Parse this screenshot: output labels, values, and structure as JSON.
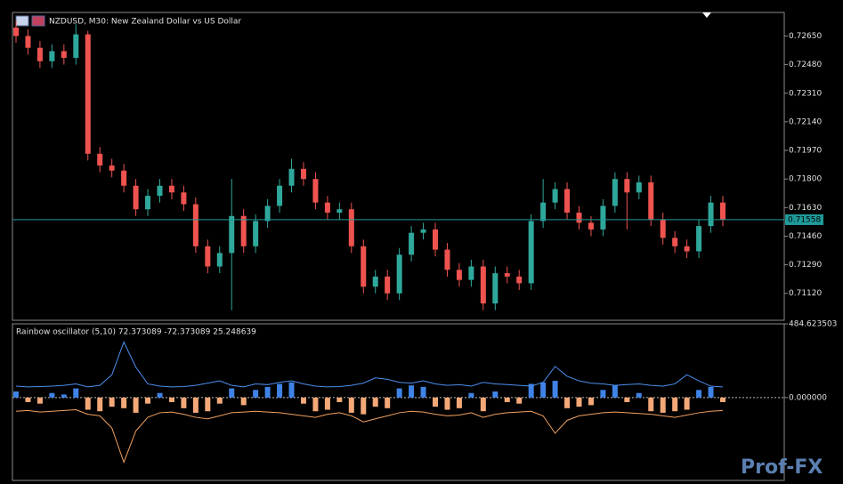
{
  "chart_data": [
    {
      "type": "candlestick",
      "title": "NZDUSD, M30:  New Zealand Dollar vs US Dollar",
      "open": [
        0.727,
        0.7265,
        0.7258,
        0.725,
        0.7256,
        0.7252,
        0.7266,
        0.7195,
        0.7188,
        0.7185,
        0.7176,
        0.7162,
        0.717,
        0.7176,
        0.7172,
        0.7165,
        0.714,
        0.7128,
        0.7136,
        0.7158,
        0.714,
        0.7155,
        0.7164,
        0.7176,
        0.7186,
        0.718,
        0.7166,
        0.716,
        0.7162,
        0.714,
        0.7116,
        0.7122,
        0.7112,
        0.7135,
        0.7148,
        0.715,
        0.7138,
        0.7126,
        0.712,
        0.7128,
        0.7106,
        0.7124,
        0.7122,
        0.7118,
        0.7155,
        0.7166,
        0.7174,
        0.716,
        0.7154,
        0.715,
        0.7164,
        0.718,
        0.7172,
        0.7178,
        0.7156,
        0.7145,
        0.714,
        0.7137,
        0.7152,
        0.7166
      ],
      "high": [
        0.7274,
        0.7269,
        0.7262,
        0.726,
        0.726,
        0.7272,
        0.7268,
        0.7199,
        0.7192,
        0.7189,
        0.718,
        0.7174,
        0.718,
        0.718,
        0.7176,
        0.7169,
        0.7144,
        0.714,
        0.718,
        0.7162,
        0.7159,
        0.7168,
        0.718,
        0.7192,
        0.719,
        0.7184,
        0.717,
        0.7166,
        0.7166,
        0.7144,
        0.7126,
        0.7126,
        0.7139,
        0.7152,
        0.7154,
        0.7154,
        0.7142,
        0.713,
        0.7132,
        0.7132,
        0.7128,
        0.7128,
        0.7126,
        0.7159,
        0.718,
        0.7178,
        0.7178,
        0.7164,
        0.7158,
        0.7168,
        0.7184,
        0.7184,
        0.7182,
        0.7182,
        0.716,
        0.7149,
        0.7144,
        0.7156,
        0.717,
        0.717
      ],
      "low": [
        0.7261,
        0.7254,
        0.7246,
        0.7246,
        0.7248,
        0.7248,
        0.7191,
        0.7184,
        0.7181,
        0.7172,
        0.7158,
        0.7158,
        0.7166,
        0.7168,
        0.7161,
        0.7136,
        0.7124,
        0.7124,
        0.7102,
        0.7136,
        0.7136,
        0.7151,
        0.716,
        0.7172,
        0.7176,
        0.7162,
        0.7156,
        0.7156,
        0.7136,
        0.7112,
        0.7112,
        0.7108,
        0.7108,
        0.7131,
        0.7144,
        0.7134,
        0.7122,
        0.7116,
        0.7116,
        0.7102,
        0.7102,
        0.7118,
        0.7114,
        0.7114,
        0.7151,
        0.7162,
        0.7156,
        0.715,
        0.7146,
        0.7146,
        0.716,
        0.715,
        0.7168,
        0.7152,
        0.7141,
        0.7136,
        0.7133,
        0.7133,
        0.7148,
        0.7152
      ],
      "close": [
        0.7265,
        0.7258,
        0.725,
        0.7256,
        0.7252,
        0.7266,
        0.7195,
        0.7188,
        0.7185,
        0.7176,
        0.7162,
        0.717,
        0.7176,
        0.7172,
        0.7165,
        0.714,
        0.7128,
        0.7136,
        0.7158,
        0.714,
        0.7155,
        0.7164,
        0.7176,
        0.7186,
        0.718,
        0.7166,
        0.716,
        0.7162,
        0.714,
        0.7116,
        0.7122,
        0.7112,
        0.7135,
        0.7148,
        0.715,
        0.7138,
        0.7126,
        0.712,
        0.7128,
        0.7106,
        0.7124,
        0.7122,
        0.7118,
        0.7155,
        0.7166,
        0.7174,
        0.716,
        0.7154,
        0.715,
        0.7164,
        0.718,
        0.7172,
        0.7178,
        0.7156,
        0.7145,
        0.714,
        0.7137,
        0.7152,
        0.7166,
        0.7156
      ],
      "up_color": "#2fa89c",
      "down_color": "#ef5350",
      "current_price": {
        "value": 0.71558,
        "label": "0.71558"
      },
      "current_price_color": "#1f9a9a",
      "ylim": [
        0.7096,
        0.7279
      ],
      "yticks": [
        {
          "value": 0.7265,
          "label": "0.72650"
        },
        {
          "value": 0.7248,
          "label": "0.72480"
        },
        {
          "value": 0.7231,
          "label": "0.72310"
        },
        {
          "value": 0.7214,
          "label": "0.72140"
        },
        {
          "value": 0.7197,
          "label": "0.71970"
        },
        {
          "value": 0.718,
          "label": "0.71800"
        },
        {
          "value": 0.7163,
          "label": "0.71630"
        },
        {
          "value": 0.7146,
          "label": "0.71460"
        },
        {
          "value": 0.7129,
          "label": "0.71290"
        },
        {
          "value": 0.7112,
          "label": "0.71120"
        }
      ]
    },
    {
      "type": "oscillator",
      "legend": "Rainbow oscillator (5,10) 72.373089 -72.373089 25.248639",
      "values": [
        40,
        -30,
        -40,
        30,
        20,
        60,
        -80,
        -90,
        -60,
        -70,
        -100,
        -40,
        30,
        -30,
        -70,
        -100,
        -90,
        -40,
        60,
        -50,
        50,
        70,
        90,
        100,
        -40,
        -90,
        -80,
        -30,
        -100,
        -110,
        -60,
        -70,
        60,
        80,
        70,
        -60,
        -80,
        -70,
        30,
        -90,
        40,
        -30,
        -40,
        90,
        100,
        110,
        -70,
        -60,
        -50,
        50,
        80,
        -30,
        30,
        -90,
        -100,
        -90,
        -80,
        50,
        70,
        -30
      ],
      "upper": [
        75,
        70,
        72,
        75,
        80,
        90,
        70,
        80,
        150,
        365,
        200,
        90,
        75,
        70,
        72,
        80,
        95,
        110,
        80,
        70,
        90,
        85,
        100,
        110,
        90,
        75,
        70,
        72,
        80,
        95,
        130,
        120,
        100,
        95,
        110,
        90,
        80,
        85,
        75,
        100,
        90,
        85,
        80,
        75,
        100,
        205,
        140,
        110,
        95,
        90,
        80,
        85,
        90,
        80,
        75,
        90,
        150,
        110,
        75,
        70
      ],
      "lower": [
        -90,
        -85,
        -95,
        -90,
        -85,
        -80,
        -110,
        -120,
        -200,
        -425,
        -220,
        -130,
        -100,
        -95,
        -110,
        -130,
        -140,
        -120,
        -100,
        -95,
        -90,
        -95,
        -100,
        -110,
        -120,
        -130,
        -110,
        -100,
        -120,
        -160,
        -140,
        -120,
        -100,
        -90,
        -95,
        -110,
        -120,
        -115,
        -100,
        -130,
        -110,
        -100,
        -95,
        -90,
        -120,
        -235,
        -150,
        -120,
        -110,
        -100,
        -95,
        -100,
        -105,
        -110,
        -120,
        -130,
        -115,
        -100,
        -90,
        -85
      ],
      "positive_color": "#3f83e6",
      "negative_color": "#f4a878",
      "upper_color": "#4d8ff0",
      "lower_color": "#f0a060",
      "ylim": [
        -545,
        484.623503
      ],
      "yticks": [
        484.623503,
        {
          "value": 0,
          "label": "0.000000"
        }
      ]
    }
  ],
  "watermark": "Prof-FX"
}
